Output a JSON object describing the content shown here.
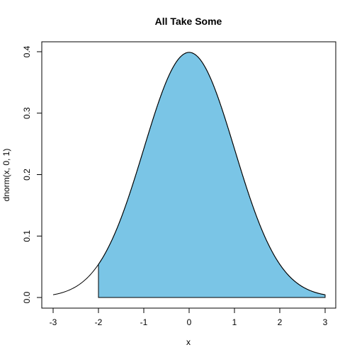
{
  "chart_data": {
    "type": "area",
    "title": "All Take Some",
    "xlabel": "x",
    "ylabel": "dnorm(x, 0, 1)",
    "xlim": [
      -3,
      3
    ],
    "ylim": [
      0,
      0.4
    ],
    "x_ticks": [
      -3,
      -2,
      -1,
      0,
      1,
      2,
      3
    ],
    "x_tick_labels": [
      "-3",
      "-2",
      "-1",
      "0",
      "1",
      "2",
      "3"
    ],
    "y_ticks": [
      0,
      0.1,
      0.2,
      0.3,
      0.4
    ],
    "y_tick_labels": [
      "0.0",
      "0.1",
      "0.2",
      "0.3",
      "0.4"
    ],
    "grid": false,
    "curve": {
      "x": [
        -3.0,
        -2.75,
        -2.5,
        -2.25,
        -2.0,
        -1.75,
        -1.5,
        -1.25,
        -1.0,
        -0.75,
        -0.5,
        -0.25,
        0.0,
        0.25,
        0.5,
        0.75,
        1.0,
        1.25,
        1.5,
        1.75,
        2.0,
        2.25,
        2.5,
        2.75,
        3.0
      ],
      "y": [
        0.0044,
        0.0091,
        0.0175,
        0.0317,
        0.054,
        0.0863,
        0.1295,
        0.1826,
        0.242,
        0.3011,
        0.3521,
        0.3867,
        0.3989,
        0.3867,
        0.3521,
        0.3011,
        0.242,
        0.1826,
        0.1295,
        0.0863,
        0.054,
        0.0317,
        0.0175,
        0.0091,
        0.0044
      ]
    },
    "shaded_region": {
      "x_from": -2,
      "x_to": 3,
      "fill": "#7AC5E6"
    }
  }
}
